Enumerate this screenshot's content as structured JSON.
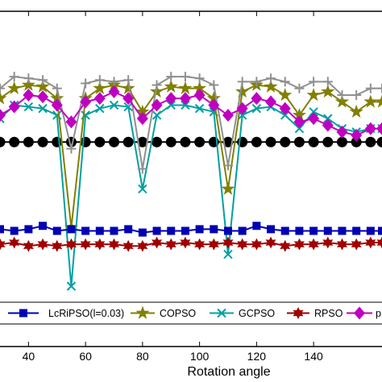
{
  "chart_data": {
    "type": "line",
    "title": "",
    "xlabel": "Rotation angle",
    "ylabel": "",
    "xlim": [
      30,
      164
    ],
    "xticks": [
      40,
      60,
      80,
      100,
      120,
      140
    ],
    "xtick_labels": [
      "40",
      "60",
      "80",
      "100",
      "120",
      "140"
    ],
    "ylim": [
      0,
      10
    ],
    "legend": "bottom",
    "grid": false,
    "x": [
      30,
      35,
      40,
      45,
      50,
      55,
      60,
      65,
      70,
      75,
      80,
      85,
      90,
      95,
      100,
      105,
      110,
      115,
      120,
      125,
      130,
      135,
      140,
      145,
      150,
      155,
      160,
      164
    ],
    "series": [
      {
        "name": "LcRiPSO(l=0.03)",
        "color": "#0000b4",
        "marker": "square",
        "values": [
          3.5,
          3.45,
          3.5,
          3.6,
          3.45,
          3.5,
          3.45,
          3.45,
          3.45,
          3.5,
          3.4,
          3.45,
          3.45,
          3.45,
          3.5,
          3.5,
          3.45,
          3.45,
          3.6,
          3.5,
          3.45,
          3.45,
          3.45,
          3.45,
          3.45,
          3.45,
          3.45,
          3.45
        ]
      },
      {
        "name": "COPSO",
        "color": "#808000",
        "marker": "star",
        "values": [
          7.4,
          7.7,
          7.8,
          7.75,
          7.4,
          3.55,
          7.4,
          7.7,
          7.8,
          7.7,
          7.0,
          7.6,
          7.75,
          7.7,
          7.7,
          7.4,
          4.7,
          7.6,
          7.8,
          7.75,
          7.5,
          6.9,
          7.5,
          7.6,
          7.3,
          7.0,
          7.3,
          7.3
        ]
      },
      {
        "name": "GCPSO",
        "color": "#00a0a0",
        "marker": "x",
        "values": [
          6.8,
          7.2,
          7.15,
          7.1,
          6.9,
          1.8,
          6.9,
          7.1,
          7.2,
          7.15,
          4.7,
          6.9,
          7.2,
          7.2,
          7.1,
          7.0,
          2.75,
          6.9,
          7.1,
          7.15,
          6.9,
          6.5,
          7.0,
          6.8,
          6.5,
          6.4,
          6.5,
          6.5
        ]
      },
      {
        "name": "RPSO",
        "color": "#a00000",
        "marker": "hexagram",
        "values": [
          3.05,
          3.1,
          3.0,
          3.05,
          3.0,
          3.05,
          3.05,
          3.05,
          3.05,
          3.0,
          3.0,
          3.1,
          3.05,
          3.1,
          3.05,
          3.05,
          3.1,
          3.05,
          3.05,
          3.1,
          3.0,
          3.05,
          3.05,
          3.1,
          3.05,
          3.05,
          3.1,
          3.1
        ]
      },
      {
        "name": "p",
        "color": "#c000c0",
        "marker": "diamond",
        "values": [
          6.9,
          7.15,
          7.5,
          7.45,
          7.2,
          6.7,
          7.3,
          7.4,
          7.6,
          7.4,
          6.8,
          7.2,
          7.4,
          7.4,
          7.5,
          7.2,
          6.9,
          7.1,
          7.4,
          7.3,
          7.1,
          6.7,
          6.8,
          6.6,
          6.4,
          6.3,
          6.5,
          6.5
        ]
      },
      {
        "name": "",
        "color": "#000000",
        "marker": "circle",
        "values": [
          6.1,
          6.1,
          6.1,
          6.1,
          6.1,
          6.1,
          6.1,
          6.1,
          6.1,
          6.1,
          6.1,
          6.1,
          6.1,
          6.1,
          6.1,
          6.1,
          6.1,
          6.1,
          6.1,
          6.1,
          6.1,
          6.1,
          6.1,
          6.1,
          6.1,
          6.1,
          6.1,
          6.1
        ]
      },
      {
        "name": "",
        "color": "#909090",
        "marker": "plus",
        "values": [
          7.7,
          8.05,
          8.0,
          7.95,
          7.7,
          5.9,
          7.85,
          7.95,
          7.9,
          7.95,
          5.3,
          7.8,
          8.05,
          8.05,
          8.0,
          7.8,
          5.4,
          7.9,
          7.9,
          8.0,
          7.9,
          7.7,
          7.9,
          7.9,
          7.5,
          7.5,
          7.7,
          7.7
        ]
      }
    ]
  }
}
